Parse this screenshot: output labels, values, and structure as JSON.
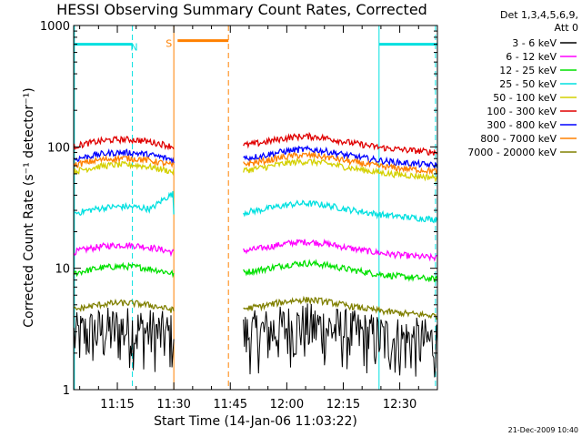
{
  "chart_data": {
    "type": "line",
    "title": "HESSI Observing Summary Count Rates, Corrected",
    "xlabel": "Start Time (14-Jan-06 11:03:22)",
    "ylabel": "Corrected Count Rate (s⁻¹ detector⁻¹)",
    "y_scale": "log",
    "ylim": [
      1,
      1000
    ],
    "xlim_minutes": [
      63.4,
      160.0
    ],
    "x_ticks": [
      {
        "minute": 75,
        "label": "11:15"
      },
      {
        "minute": 90,
        "label": "11:30"
      },
      {
        "minute": 105,
        "label": "11:45"
      },
      {
        "minute": 120,
        "label": "12:00"
      },
      {
        "minute": 135,
        "label": "12:15"
      },
      {
        "minute": 150,
        "label": "12:30"
      }
    ],
    "y_ticks": [
      {
        "value": 1,
        "label": "1"
      },
      {
        "value": 10,
        "label": "10"
      },
      {
        "value": 100,
        "label": "100"
      },
      {
        "value": 1000,
        "label": "1000"
      }
    ],
    "legend_header": [
      "Det 1,3,4,5,6,9,",
      "Att 0"
    ],
    "legend_position": "right",
    "series": [
      {
        "name": "3 - 6 keV",
        "color": "#000000",
        "level": 2.5,
        "segments": [
          [
            63.5,
            90
          ],
          [
            108.5,
            160
          ]
        ],
        "noisy": true
      },
      {
        "name": "6 - 12 keV",
        "color": "#ff00ff",
        "level": 13.5,
        "segments": [
          [
            63.5,
            90
          ],
          [
            108.5,
            160
          ]
        ]
      },
      {
        "name": "12 - 25 keV",
        "color": "#00e000",
        "level": 9.0,
        "segments": [
          [
            63.5,
            90
          ],
          [
            108.5,
            160
          ]
        ]
      },
      {
        "name": "25 - 50 keV",
        "color": "#00e0e0",
        "level": 28,
        "segments": [
          [
            63.5,
            90
          ],
          [
            108.5,
            160
          ]
        ]
      },
      {
        "name": "50 - 100 keV",
        "color": "#d4d000",
        "level": 62,
        "segments": [
          [
            63.5,
            90
          ],
          [
            108.5,
            160
          ]
        ]
      },
      {
        "name": "100 - 300 keV",
        "color": "#e00000",
        "level": 100,
        "segments": [
          [
            63.5,
            90
          ],
          [
            108.5,
            160
          ]
        ]
      },
      {
        "name": "300 - 800 keV",
        "color": "#0000ff",
        "level": 78,
        "segments": [
          [
            63.5,
            90
          ],
          [
            108.5,
            160
          ]
        ]
      },
      {
        "name": "800 - 7000 keV",
        "color": "#ff8000",
        "level": 70,
        "segments": [
          [
            63.5,
            90
          ],
          [
            108.5,
            160
          ]
        ]
      },
      {
        "name": "7000 - 20000 keV",
        "color": "#808000",
        "level": 4.5,
        "segments": [
          [
            63.5,
            90
          ],
          [
            108.5,
            160
          ]
        ]
      }
    ],
    "flag_bars": [
      {
        "label": "N",
        "color": "#00e0e0",
        "start": 63.5,
        "end": 79.0,
        "value": 700
      },
      {
        "label": "S",
        "color": "#ff8000",
        "start": 91.0,
        "end": 104.5,
        "value": 750
      },
      {
        "label": "",
        "color": "#00e0e0",
        "start": 144.5,
        "end": 160.0,
        "value": 700
      }
    ],
    "vertical_markers": [
      {
        "minute": 63.6,
        "color": "#00e0e0",
        "style": "solid"
      },
      {
        "minute": 79.0,
        "color": "#00e0e0",
        "style": "dashed"
      },
      {
        "minute": 90.0,
        "color": "#ff8000",
        "style": "solid"
      },
      {
        "minute": 104.5,
        "color": "#ff8000",
        "style": "dashed"
      },
      {
        "minute": 144.5,
        "color": "#00e0e0",
        "style": "solid"
      },
      {
        "minute": 159.5,
        "color": "#00e0e0",
        "style": "dashed"
      }
    ],
    "footer_date": "21-Dec-2009 10:40"
  }
}
